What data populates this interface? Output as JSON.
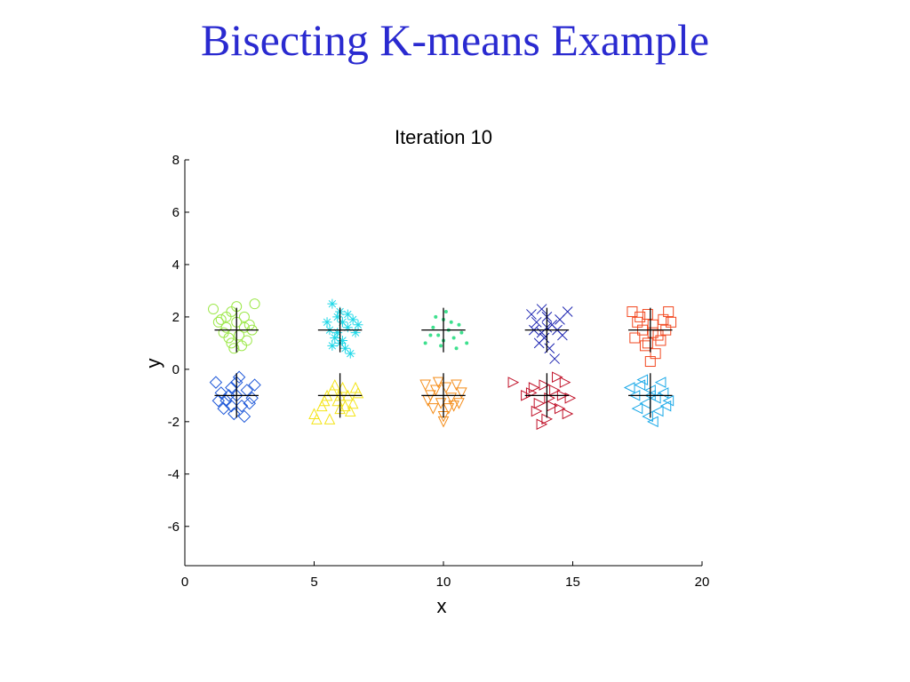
{
  "slide": {
    "title": "Bisecting K-means Example"
  },
  "chart_data": {
    "type": "scatter",
    "title": "Iteration 10",
    "xlabel": "x",
    "ylabel": "y",
    "xlim": [
      0,
      20
    ],
    "ylim": [
      -7.5,
      8
    ],
    "xticks": [
      0,
      5,
      10,
      15,
      20
    ],
    "yticks": [
      -6,
      -4,
      -2,
      0,
      2,
      4,
      6,
      8
    ],
    "grid": false,
    "legend": "none",
    "centroid_marker": "plus",
    "centroid_color": "#000000",
    "clusters": [
      {
        "marker": "circle",
        "color": "#9de84a",
        "centroid": [
          2.0,
          1.5
        ],
        "points": [
          [
            1.1,
            2.3
          ],
          [
            1.4,
            1.9
          ],
          [
            1.6,
            1.6
          ],
          [
            1.8,
            2.2
          ],
          [
            2.0,
            1.8
          ],
          [
            2.3,
            2.0
          ],
          [
            2.5,
            1.7
          ],
          [
            2.7,
            2.5
          ],
          [
            1.7,
            1.2
          ],
          [
            2.1,
            1.3
          ],
          [
            2.4,
            1.1
          ],
          [
            1.5,
            1.4
          ],
          [
            1.9,
            0.8
          ],
          [
            2.2,
            0.9
          ],
          [
            2.6,
            1.5
          ],
          [
            1.3,
            1.8
          ],
          [
            2.0,
            2.4
          ],
          [
            1.8,
            1.0
          ],
          [
            2.3,
            1.6
          ],
          [
            1.6,
            2.0
          ]
        ]
      },
      {
        "marker": "asterisk",
        "color": "#1ed8e8",
        "centroid": [
          6.0,
          1.5
        ],
        "points": [
          [
            5.7,
            2.5
          ],
          [
            5.9,
            2.0
          ],
          [
            6.1,
            1.8
          ],
          [
            6.3,
            1.6
          ],
          [
            5.6,
            1.5
          ],
          [
            6.5,
            1.9
          ],
          [
            5.8,
            1.2
          ],
          [
            6.0,
            1.0
          ],
          [
            6.2,
            0.8
          ],
          [
            6.4,
            0.6
          ],
          [
            6.6,
            1.4
          ],
          [
            5.5,
            1.8
          ],
          [
            6.0,
            2.2
          ],
          [
            6.3,
            2.1
          ],
          [
            5.9,
            1.4
          ],
          [
            6.1,
            1.1
          ],
          [
            6.7,
            1.7
          ],
          [
            5.7,
            0.9
          ]
        ]
      },
      {
        "marker": "dot",
        "color": "#3ee08e",
        "centroid": [
          10.0,
          1.5
        ],
        "points": [
          [
            9.3,
            1.0
          ],
          [
            9.6,
            1.6
          ],
          [
            9.8,
            1.3
          ],
          [
            10.0,
            1.9
          ],
          [
            10.2,
            1.5
          ],
          [
            10.4,
            1.2
          ],
          [
            10.6,
            1.7
          ],
          [
            10.1,
            2.2
          ],
          [
            9.9,
            0.9
          ],
          [
            10.5,
            0.8
          ],
          [
            10.9,
            1.0
          ],
          [
            9.7,
            2.0
          ],
          [
            10.3,
            1.8
          ],
          [
            10.0,
            1.1
          ],
          [
            9.5,
            1.3
          ],
          [
            10.7,
            1.4
          ]
        ]
      },
      {
        "marker": "cross",
        "color": "#1a22b0",
        "centroid": [
          14.0,
          1.5
        ],
        "points": [
          [
            13.4,
            2.1
          ],
          [
            13.6,
            1.8
          ],
          [
            13.8,
            2.3
          ],
          [
            14.0,
            2.0
          ],
          [
            14.2,
            1.7
          ],
          [
            14.4,
            1.5
          ],
          [
            14.6,
            1.3
          ],
          [
            14.8,
            2.2
          ],
          [
            13.5,
            1.5
          ],
          [
            13.9,
            1.2
          ],
          [
            14.1,
            0.8
          ],
          [
            14.3,
            0.4
          ],
          [
            14.5,
            1.9
          ],
          [
            13.7,
            1.0
          ],
          [
            14.0,
            1.6
          ],
          [
            13.8,
            1.4
          ]
        ]
      },
      {
        "marker": "square",
        "color": "#f24820",
        "centroid": [
          18.0,
          1.5
        ],
        "points": [
          [
            17.3,
            2.2
          ],
          [
            17.5,
            1.8
          ],
          [
            17.7,
            1.5
          ],
          [
            17.9,
            2.1
          ],
          [
            18.1,
            1.7
          ],
          [
            18.3,
            1.3
          ],
          [
            18.5,
            1.9
          ],
          [
            18.7,
            2.2
          ],
          [
            17.4,
            1.2
          ],
          [
            17.8,
            0.9
          ],
          [
            18.2,
            0.6
          ],
          [
            18.0,
            0.3
          ],
          [
            18.4,
            1.1
          ],
          [
            18.8,
            1.8
          ],
          [
            17.6,
            2.0
          ],
          [
            18.1,
            1.4
          ],
          [
            17.9,
            1.0
          ],
          [
            18.6,
            1.5
          ]
        ]
      },
      {
        "marker": "diamond",
        "color": "#1e58d8",
        "centroid": [
          2.0,
          -1.0
        ],
        "points": [
          [
            1.2,
            -0.5
          ],
          [
            1.4,
            -0.9
          ],
          [
            1.6,
            -1.2
          ],
          [
            1.8,
            -0.7
          ],
          [
            2.0,
            -1.0
          ],
          [
            2.2,
            -1.4
          ],
          [
            2.4,
            -0.8
          ],
          [
            2.6,
            -1.1
          ],
          [
            1.5,
            -1.5
          ],
          [
            1.9,
            -1.7
          ],
          [
            2.1,
            -0.3
          ],
          [
            2.3,
            -1.8
          ],
          [
            2.7,
            -0.6
          ],
          [
            1.7,
            -1.0
          ],
          [
            2.5,
            -1.3
          ],
          [
            1.3,
            -1.2
          ],
          [
            2.0,
            -0.5
          ],
          [
            1.8,
            -1.4
          ]
        ]
      },
      {
        "marker": "triangle-up",
        "color": "#f4e418",
        "centroid": [
          6.0,
          -1.0
        ],
        "points": [
          [
            5.0,
            -1.7
          ],
          [
            5.3,
            -1.4
          ],
          [
            5.5,
            -1.0
          ],
          [
            5.7,
            -0.8
          ],
          [
            5.9,
            -1.2
          ],
          [
            6.1,
            -0.7
          ],
          [
            6.3,
            -1.0
          ],
          [
            6.5,
            -1.3
          ],
          [
            6.7,
            -0.9
          ],
          [
            5.6,
            -1.9
          ],
          [
            6.0,
            -1.5
          ],
          [
            6.4,
            -1.6
          ],
          [
            5.8,
            -0.6
          ],
          [
            6.2,
            -1.4
          ],
          [
            5.4,
            -1.2
          ],
          [
            6.6,
            -0.7
          ],
          [
            5.1,
            -1.9
          ],
          [
            6.0,
            -1.0
          ]
        ]
      },
      {
        "marker": "triangle-down",
        "color": "#f48c18",
        "centroid": [
          10.0,
          -1.0
        ],
        "points": [
          [
            9.3,
            -0.6
          ],
          [
            9.5,
            -1.0
          ],
          [
            9.7,
            -0.8
          ],
          [
            9.9,
            -1.3
          ],
          [
            10.1,
            -0.7
          ],
          [
            10.3,
            -1.1
          ],
          [
            10.5,
            -0.6
          ],
          [
            10.7,
            -0.9
          ],
          [
            9.6,
            -1.5
          ],
          [
            10.0,
            -1.8
          ],
          [
            10.2,
            -1.5
          ],
          [
            9.8,
            -0.5
          ],
          [
            10.4,
            -1.4
          ],
          [
            10.0,
            -2.0
          ],
          [
            9.4,
            -1.2
          ],
          [
            10.6,
            -1.3
          ]
        ]
      },
      {
        "marker": "triangle-right",
        "color": "#c01028",
        "centroid": [
          14.0,
          -1.0
        ],
        "points": [
          [
            12.7,
            -0.5
          ],
          [
            13.2,
            -1.0
          ],
          [
            13.5,
            -0.7
          ],
          [
            13.7,
            -1.3
          ],
          [
            13.9,
            -0.6
          ],
          [
            14.1,
            -1.1
          ],
          [
            14.3,
            -0.8
          ],
          [
            14.5,
            -1.5
          ],
          [
            14.7,
            -0.5
          ],
          [
            14.9,
            -1.1
          ],
          [
            13.6,
            -1.6
          ],
          [
            14.0,
            -1.9
          ],
          [
            14.4,
            -0.3
          ],
          [
            14.8,
            -1.7
          ],
          [
            13.8,
            -2.1
          ],
          [
            14.2,
            -1.4
          ],
          [
            13.4,
            -0.9
          ],
          [
            14.6,
            -1.0
          ]
        ]
      },
      {
        "marker": "triangle-left",
        "color": "#18a8e8",
        "centroid": [
          18.0,
          -1.0
        ],
        "points": [
          [
            17.2,
            -0.7
          ],
          [
            17.4,
            -1.0
          ],
          [
            17.6,
            -0.6
          ],
          [
            17.8,
            -1.3
          ],
          [
            18.0,
            -0.8
          ],
          [
            18.2,
            -1.1
          ],
          [
            18.4,
            -0.5
          ],
          [
            18.6,
            -1.4
          ],
          [
            17.5,
            -1.5
          ],
          [
            17.9,
            -1.8
          ],
          [
            18.1,
            -2.0
          ],
          [
            18.3,
            -1.6
          ],
          [
            17.7,
            -0.4
          ],
          [
            18.5,
            -0.9
          ],
          [
            18.7,
            -1.2
          ],
          [
            18.0,
            -1.0
          ]
        ]
      }
    ]
  }
}
